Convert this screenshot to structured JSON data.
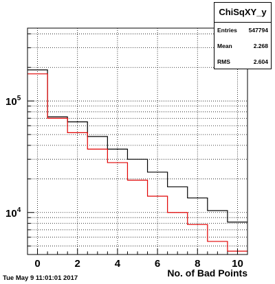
{
  "stats": {
    "title": "ChiSqXY_y",
    "rows": [
      {
        "label": "Entries",
        "value": "547794"
      },
      {
        "label": "Mean",
        "value": "2.268"
      },
      {
        "label": "RMS",
        "value": "2.604"
      }
    ]
  },
  "footer": {
    "datestamp": "Tue May  9 11:01:01 2017"
  },
  "chart_data": {
    "type": "histogram",
    "xlabel": "No. of Bad Points",
    "ylabel": "",
    "title": "",
    "xlim": [
      -0.5,
      10.5
    ],
    "ylim": [
      4200,
      450000
    ],
    "log_y": true,
    "grid": true,
    "bin_edges": [
      -0.5,
      0.5,
      1.5,
      2.5,
      3.5,
      4.5,
      5.5,
      6.5,
      7.5,
      8.5,
      9.5,
      10.5
    ],
    "x_ticks": [
      0,
      2,
      4,
      6,
      8,
      10
    ],
    "x_tick_labels": [
      "0",
      "2",
      "4",
      "6",
      "8",
      "10"
    ],
    "y_ticks": [
      10000,
      100000
    ],
    "y_tick_labels": [
      "10^4",
      "10^5"
    ],
    "series": [
      {
        "color": "#000000",
        "values": [
          190000,
          72000,
          65000,
          48000,
          37000,
          30000,
          23000,
          17000,
          13500,
          10400,
          8200
        ]
      },
      {
        "color": "#e00000",
        "values": [
          175000,
          70000,
          52000,
          37000,
          28000,
          19500,
          14000,
          10000,
          7800,
          5500,
          4500
        ]
      }
    ]
  }
}
